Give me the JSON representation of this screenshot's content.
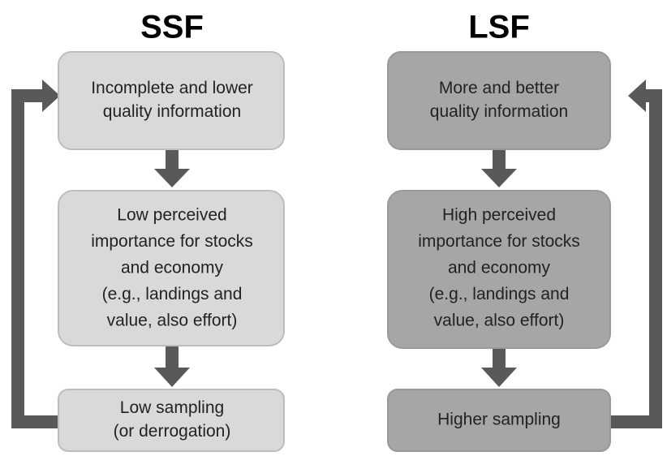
{
  "columns": [
    {
      "title": "SSF",
      "boxes": [
        {
          "lines": [
            "Incomplete and lower",
            "quality information"
          ]
        },
        {
          "lines": [
            "Low perceived",
            "importance for stocks",
            "and economy",
            "(e.g., landings and",
            "value, also effort)"
          ]
        },
        {
          "lines": [
            "Low sampling",
            "(or derrogation)"
          ]
        }
      ]
    },
    {
      "title": "LSF",
      "boxes": [
        {
          "lines": [
            "More and better",
            "quality information"
          ]
        },
        {
          "lines": [
            "High perceived",
            "importance for stocks",
            "and economy",
            "(e.g., landings and",
            "value, also effort)"
          ]
        },
        {
          "lines": [
            "Higher sampling"
          ]
        }
      ]
    }
  ]
}
